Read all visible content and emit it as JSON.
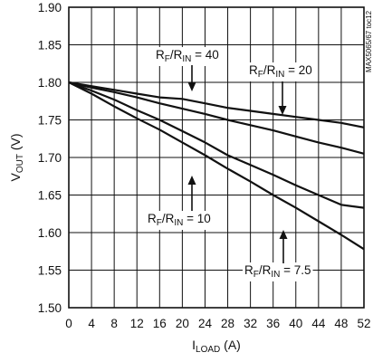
{
  "chart_data": {
    "type": "line",
    "xlabel": {
      "main": "I",
      "sub": "LOAD",
      "unit": " (A)"
    },
    "ylabel": {
      "main": "V",
      "sub": "OUT",
      "unit": " (V)"
    },
    "xlim": [
      0,
      52
    ],
    "ylim": [
      1.5,
      1.9
    ],
    "x_ticks": [
      "0",
      "4",
      "8",
      "12",
      "16",
      "20",
      "24",
      "28",
      "32",
      "36",
      "40",
      "44",
      "48",
      "52"
    ],
    "y_ticks": [
      "1.50",
      "1.55",
      "1.60",
      "1.65",
      "1.70",
      "1.75",
      "1.80",
      "1.85",
      "1.90"
    ],
    "grid": true,
    "series": [
      {
        "ratio": "40",
        "points": [
          [
            0,
            1.8
          ],
          [
            4,
            1.795
          ],
          [
            8,
            1.79
          ],
          [
            12,
            1.785
          ],
          [
            16,
            1.78
          ],
          [
            20,
            1.778
          ],
          [
            24,
            1.772
          ],
          [
            28,
            1.766
          ],
          [
            32,
            1.762
          ],
          [
            36,
            1.758
          ],
          [
            40,
            1.754
          ],
          [
            44,
            1.75
          ],
          [
            48,
            1.746
          ],
          [
            52,
            1.74
          ]
        ]
      },
      {
        "ratio": "20",
        "points": [
          [
            0,
            1.8
          ],
          [
            4,
            1.793
          ],
          [
            8,
            1.787
          ],
          [
            12,
            1.78
          ],
          [
            16,
            1.772
          ],
          [
            20,
            1.765
          ],
          [
            24,
            1.758
          ],
          [
            28,
            1.75
          ],
          [
            32,
            1.743
          ],
          [
            36,
            1.736
          ],
          [
            40,
            1.728
          ],
          [
            44,
            1.72
          ],
          [
            48,
            1.713
          ],
          [
            52,
            1.705
          ]
        ]
      },
      {
        "ratio": "10",
        "points": [
          [
            0,
            1.8
          ],
          [
            4,
            1.789
          ],
          [
            8,
            1.777
          ],
          [
            12,
            1.763
          ],
          [
            16,
            1.75
          ],
          [
            20,
            1.735
          ],
          [
            24,
            1.72
          ],
          [
            28,
            1.703
          ],
          [
            32,
            1.69
          ],
          [
            36,
            1.677
          ],
          [
            40,
            1.663
          ],
          [
            44,
            1.65
          ],
          [
            48,
            1.637
          ],
          [
            52,
            1.633
          ]
        ]
      },
      {
        "ratio": "7.5",
        "points": [
          [
            0,
            1.8
          ],
          [
            4,
            1.785
          ],
          [
            8,
            1.768
          ],
          [
            12,
            1.752
          ],
          [
            16,
            1.737
          ],
          [
            20,
            1.72
          ],
          [
            24,
            1.703
          ],
          [
            28,
            1.685
          ],
          [
            32,
            1.668
          ],
          [
            36,
            1.65
          ],
          [
            40,
            1.633
          ],
          [
            44,
            1.615
          ],
          [
            48,
            1.597
          ],
          [
            52,
            1.578
          ]
        ]
      }
    ],
    "annotations": [
      {
        "prefix_main": "R",
        "prefix_sub": "F",
        "slash": "/R",
        "suffix_sub": "IN",
        "value": " = 40"
      },
      {
        "prefix_main": "R",
        "prefix_sub": "F",
        "slash": "/R",
        "suffix_sub": "IN",
        "value": " = 20"
      },
      {
        "prefix_main": "R",
        "prefix_sub": "F",
        "slash": "/R",
        "suffix_sub": "IN",
        "value": " = 10"
      },
      {
        "prefix_main": "R",
        "prefix_sub": "F",
        "slash": "/R",
        "suffix_sub": "IN",
        "value": " = 7.5"
      }
    ],
    "figure_code": "MAX5065/67 toc12"
  }
}
